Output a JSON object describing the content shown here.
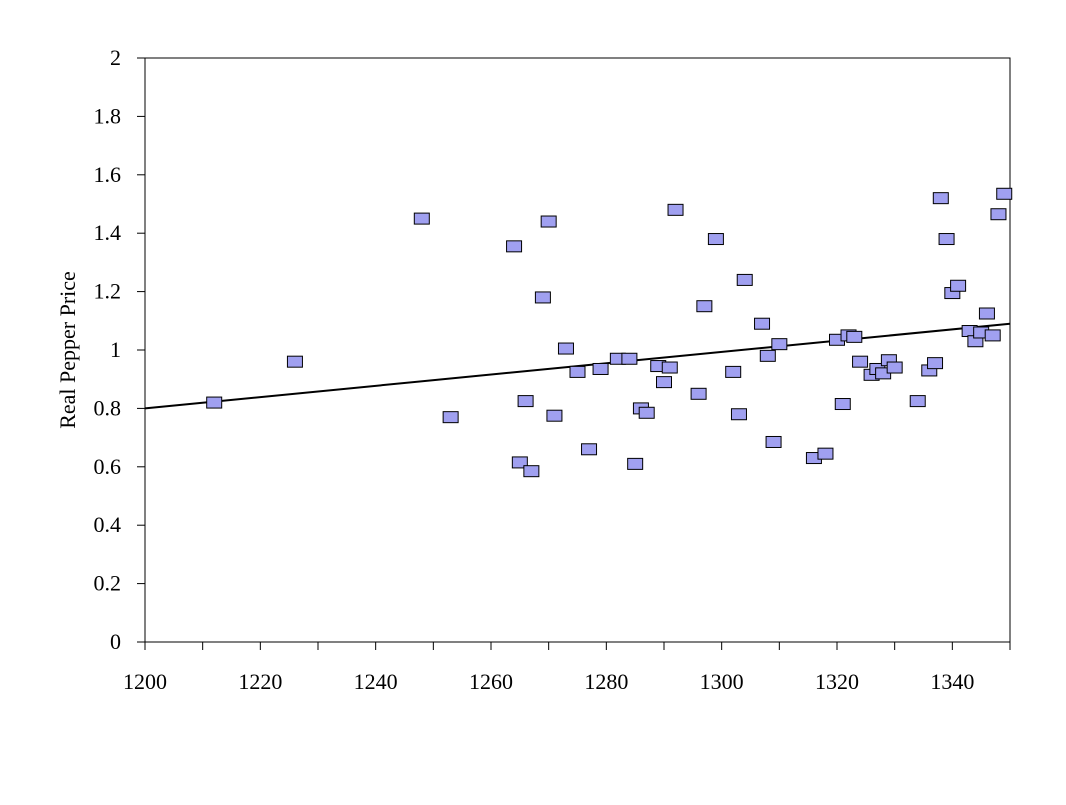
{
  "chart_data": {
    "type": "scatter",
    "title": "",
    "xlabel": "",
    "ylabel": "Real Pepper Price",
    "xlim": [
      1200,
      1350
    ],
    "ylim": [
      0,
      2
    ],
    "x_ticks": [
      1200,
      1220,
      1240,
      1260,
      1280,
      1300,
      1320,
      1340
    ],
    "x_tick_labels": [
      "1200",
      "1220",
      "1240",
      "1260",
      "1280",
      "1300",
      "1320",
      "1340"
    ],
    "y_ticks": [
      0,
      0.2,
      0.4,
      0.6,
      0.8,
      1,
      1.2,
      1.4,
      1.6,
      1.8,
      2
    ],
    "y_tick_labels": [
      "0",
      "0.2",
      "0.4",
      "0.6",
      "0.8",
      "1",
      "1.2",
      "1.4",
      "1.6",
      "1.8",
      "2"
    ],
    "grid": false,
    "legend": "none",
    "marker_color": "#a0a0f0",
    "marker_edge_color": "#000000",
    "trendline_color": "#000000",
    "trendline": {
      "x": [
        1200,
        1350
      ],
      "y": [
        0.8,
        1.09
      ]
    },
    "points": [
      {
        "x": 1212,
        "y": 0.82
      },
      {
        "x": 1226,
        "y": 0.96
      },
      {
        "x": 1248,
        "y": 1.45
      },
      {
        "x": 1253,
        "y": 0.77
      },
      {
        "x": 1264,
        "y": 1.355
      },
      {
        "x": 1265,
        "y": 0.615
      },
      {
        "x": 1266,
        "y": 0.825
      },
      {
        "x": 1267,
        "y": 0.585
      },
      {
        "x": 1269,
        "y": 1.18
      },
      {
        "x": 1270,
        "y": 1.44
      },
      {
        "x": 1271,
        "y": 0.775
      },
      {
        "x": 1273,
        "y": 1.005
      },
      {
        "x": 1275,
        "y": 0.925
      },
      {
        "x": 1277,
        "y": 0.66
      },
      {
        "x": 1279,
        "y": 0.935
      },
      {
        "x": 1282,
        "y": 0.97
      },
      {
        "x": 1284,
        "y": 0.97
      },
      {
        "x": 1285,
        "y": 0.61
      },
      {
        "x": 1286,
        "y": 0.8
      },
      {
        "x": 1287,
        "y": 0.785
      },
      {
        "x": 1289,
        "y": 0.945
      },
      {
        "x": 1290,
        "y": 0.89
      },
      {
        "x": 1291,
        "y": 0.94
      },
      {
        "x": 1292,
        "y": 1.48
      },
      {
        "x": 1296,
        "y": 0.85
      },
      {
        "x": 1297,
        "y": 1.15
      },
      {
        "x": 1299,
        "y": 1.38
      },
      {
        "x": 1302,
        "y": 0.925
      },
      {
        "x": 1303,
        "y": 0.78
      },
      {
        "x": 1304,
        "y": 1.24
      },
      {
        "x": 1307,
        "y": 1.09
      },
      {
        "x": 1308,
        "y": 0.98
      },
      {
        "x": 1309,
        "y": 0.685
      },
      {
        "x": 1310,
        "y": 1.02
      },
      {
        "x": 1316,
        "y": 0.63
      },
      {
        "x": 1318,
        "y": 0.645
      },
      {
        "x": 1320,
        "y": 1.035
      },
      {
        "x": 1321,
        "y": 0.815
      },
      {
        "x": 1322,
        "y": 1.05
      },
      {
        "x": 1323,
        "y": 1.045
      },
      {
        "x": 1324,
        "y": 0.96
      },
      {
        "x": 1326,
        "y": 0.915
      },
      {
        "x": 1327,
        "y": 0.935
      },
      {
        "x": 1328,
        "y": 0.92
      },
      {
        "x": 1329,
        "y": 0.965
      },
      {
        "x": 1330,
        "y": 0.94
      },
      {
        "x": 1334,
        "y": 0.825
      },
      {
        "x": 1336,
        "y": 0.93
      },
      {
        "x": 1337,
        "y": 0.955
      },
      {
        "x": 1338,
        "y": 1.52
      },
      {
        "x": 1339,
        "y": 1.38
      },
      {
        "x": 1340,
        "y": 1.195
      },
      {
        "x": 1341,
        "y": 1.22
      },
      {
        "x": 1343,
        "y": 1.065
      },
      {
        "x": 1344,
        "y": 1.03
      },
      {
        "x": 1345,
        "y": 1.06
      },
      {
        "x": 1346,
        "y": 1.125
      },
      {
        "x": 1347,
        "y": 1.05
      },
      {
        "x": 1348,
        "y": 1.465
      },
      {
        "x": 1349,
        "y": 1.535
      }
    ]
  }
}
